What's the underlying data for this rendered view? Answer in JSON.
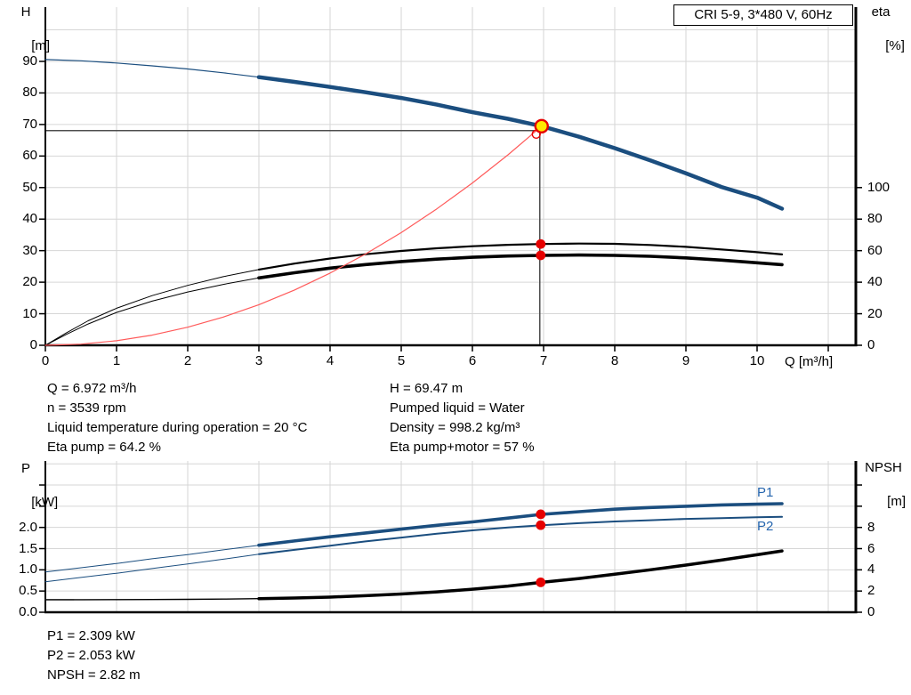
{
  "colors": {
    "curve_blue": "#1b4e7f",
    "legend_blue": "#2565ae",
    "red": "#e60000",
    "system_red": "#ff5a5a",
    "duty_yellow": "#ffe800",
    "grid": "#d6d6d6",
    "axis": "#000000",
    "crosshair": "#4d4d4d",
    "black": "#000000",
    "gray_lead": "#9a9a9a"
  },
  "info": {
    "left": [
      "Q = 6.972 m³/h",
      "n = 3539 rpm",
      "Liquid temperature during operation = 20 °C",
      "Eta pump = 64.2 %"
    ],
    "right": [
      "H = 69.47 m",
      "Pumped liquid = Water",
      "Density = 998.2 kg/m³",
      "Eta pump+motor = 57 %"
    ]
  },
  "results": [
    "P1 = 2.309 kW",
    "P2 = 2.053 kW",
    "NPSH = 2.82 m"
  ],
  "chart_data": [
    {
      "type": "line",
      "title": "CRI 5-9, 3*480 V, 60Hz",
      "xlabel": "Q [m³/h]",
      "ylabel_left": [
        "H",
        "[m]"
      ],
      "ylabel_right": [
        "eta",
        "[%]"
      ],
      "xlim": [
        0,
        11.4
      ],
      "ylim_left": [
        0,
        107
      ],
      "right_axis_note": "eta value = 2 x H-axis position",
      "x_tick_labels": [
        0,
        1,
        2,
        3,
        4,
        5,
        6,
        7,
        8,
        9,
        10
      ],
      "x_grid_count": 11,
      "left_tick_labels": [
        0,
        10,
        20,
        30,
        40,
        50,
        60,
        70,
        80,
        90
      ],
      "left_grid_values": [
        10,
        20,
        30,
        40,
        50,
        60,
        70,
        80,
        90,
        100
      ],
      "right_tick_labels": [
        0,
        20,
        40,
        60,
        80,
        100
      ],
      "duty_point": {
        "q": 6.972,
        "h": 69.47
      },
      "series": [
        {
          "name": "head-curve",
          "axis": "H",
          "color_key": "curve_blue",
          "split_q": 3,
          "thin": 1.2,
          "thick": 4.5,
          "points": [
            [
              0,
              90.6
            ],
            [
              0.5,
              90.2
            ],
            [
              1,
              89.5
            ],
            [
              1.5,
              88.6
            ],
            [
              2,
              87.6
            ],
            [
              2.5,
              86.4
            ],
            [
              3,
              85.0
            ],
            [
              3.5,
              83.5
            ],
            [
              4,
              81.9
            ],
            [
              4.5,
              80.2
            ],
            [
              5,
              78.4
            ],
            [
              5.5,
              76.3
            ],
            [
              6,
              73.9
            ],
            [
              6.5,
              71.8
            ],
            [
              6.972,
              69.47
            ],
            [
              7.5,
              66.1
            ],
            [
              8,
              62.5
            ],
            [
              8.5,
              58.6
            ],
            [
              9,
              54.5
            ],
            [
              9.5,
              50.2
            ],
            [
              10,
              46.8
            ],
            [
              10.35,
              43.3
            ]
          ]
        },
        {
          "name": "eta-pump-curve",
          "axis": "eta",
          "color_key": "black",
          "split_q": 3,
          "thin": 1.0,
          "thick": 2.2,
          "points": [
            [
              0,
              0
            ],
            [
              0.3,
              8
            ],
            [
              0.6,
              15.5
            ],
            [
              1,
              23.5
            ],
            [
              1.5,
              31.5
            ],
            [
              2,
              38
            ],
            [
              2.5,
              43.5
            ],
            [
              3,
              48
            ],
            [
              3.5,
              51.8
            ],
            [
              4,
              55
            ],
            [
              4.5,
              57.7
            ],
            [
              5,
              59.8
            ],
            [
              5.5,
              61.5
            ],
            [
              6,
              62.8
            ],
            [
              6.5,
              63.7
            ],
            [
              6.972,
              64.2
            ],
            [
              7.5,
              64.5
            ],
            [
              8,
              64.3
            ],
            [
              8.5,
              63.6
            ],
            [
              9,
              62.4
            ],
            [
              9.5,
              60.8
            ],
            [
              10,
              59.0
            ],
            [
              10.35,
              57.6
            ]
          ]
        },
        {
          "name": "eta-pump-motor-curve",
          "axis": "eta",
          "color_key": "black",
          "split_q": 3,
          "thin": 1.0,
          "thick": 3.6,
          "points": [
            [
              0,
              0
            ],
            [
              0.3,
              7
            ],
            [
              0.6,
              13.5
            ],
            [
              1,
              20.8
            ],
            [
              1.5,
              28
            ],
            [
              2,
              33.8
            ],
            [
              2.5,
              38.6
            ],
            [
              3,
              42.7
            ],
            [
              3.5,
              46
            ],
            [
              4,
              48.9
            ],
            [
              4.5,
              51.2
            ],
            [
              5,
              53.1
            ],
            [
              5.5,
              54.6
            ],
            [
              6,
              55.8
            ],
            [
              6.5,
              56.6
            ],
            [
              6.972,
              57.0
            ],
            [
              7.5,
              57.2
            ],
            [
              8,
              57.0
            ],
            [
              8.5,
              56.4
            ],
            [
              9,
              55.4
            ],
            [
              9.5,
              54.0
            ],
            [
              10,
              52.3
            ],
            [
              10.35,
              51.1
            ]
          ]
        },
        {
          "name": "system-curve",
          "axis": "H",
          "color_key": "system_red",
          "thin": 1.2,
          "points": [
            [
              0,
              0
            ],
            [
              0.5,
              0.36
            ],
            [
              1,
              1.43
            ],
            [
              1.5,
              3.22
            ],
            [
              2,
              5.72
            ],
            [
              2.5,
              8.93
            ],
            [
              3,
              12.86
            ],
            [
              3.5,
              17.51
            ],
            [
              4,
              22.87
            ],
            [
              4.5,
              28.94
            ],
            [
              5,
              35.73
            ],
            [
              5.5,
              43.24
            ],
            [
              6,
              51.45
            ],
            [
              6.5,
              60.39
            ],
            [
              6.972,
              69.47
            ]
          ]
        }
      ],
      "markers": [
        {
          "name": "duty-point-marker",
          "q": 6.972,
          "axis": "H",
          "value": 69.47,
          "style": "yellow-red-ring"
        },
        {
          "name": "eta-pump-point",
          "q": 6.972,
          "axis": "eta",
          "value": 64.2,
          "style": "red-dot"
        },
        {
          "name": "eta-pump-motor-point",
          "q": 6.972,
          "axis": "eta",
          "value": 57,
          "style": "red-dot"
        }
      ]
    },
    {
      "type": "line",
      "title": "",
      "xlabel": "",
      "ylabel_left": [
        "P",
        "[kW]"
      ],
      "ylabel_right": [
        "NPSH",
        "[m]"
      ],
      "legend": [
        "P1",
        "P2"
      ],
      "xlim": [
        0,
        11.4
      ],
      "ylim_left": [
        0,
        3.57
      ],
      "ylim_right": [
        0,
        14.3
      ],
      "x_grid_count": 11,
      "left_tick_labels": [
        "0.0",
        "0.5",
        "1.0",
        "1.5",
        "2.0"
      ],
      "left_tick_marks": [
        0,
        0.5,
        1,
        1.5,
        2,
        2.5,
        3
      ],
      "left_grid_values": [
        0.5,
        1,
        1.5,
        2,
        2.5,
        3,
        3.5
      ],
      "right_tick_labels": [
        0,
        2,
        4,
        6,
        8
      ],
      "right_tick_marks": [
        0,
        2,
        4,
        6,
        8,
        10,
        12
      ],
      "series": [
        {
          "name": "p1-curve",
          "axis": "P",
          "color_key": "curve_blue",
          "split_q": 3,
          "thin": 1.0,
          "thick": 3.6,
          "points": [
            [
              0,
              0.95
            ],
            [
              0.5,
              1.05
            ],
            [
              1,
              1.15
            ],
            [
              1.5,
              1.26
            ],
            [
              2,
              1.36
            ],
            [
              2.5,
              1.47
            ],
            [
              3,
              1.58
            ],
            [
              3.5,
              1.68
            ],
            [
              4,
              1.78
            ],
            [
              4.5,
              1.87
            ],
            [
              5,
              1.96
            ],
            [
              5.5,
              2.05
            ],
            [
              6,
              2.13
            ],
            [
              6.5,
              2.22
            ],
            [
              6.972,
              2.309
            ],
            [
              7.5,
              2.37
            ],
            [
              8,
              2.43
            ],
            [
              8.5,
              2.47
            ],
            [
              9,
              2.5
            ],
            [
              9.5,
              2.53
            ],
            [
              10,
              2.55
            ],
            [
              10.35,
              2.56
            ]
          ]
        },
        {
          "name": "p2-curve",
          "axis": "P",
          "color_key": "curve_blue",
          "split_q": 3,
          "thin": 1.0,
          "thick": 2.0,
          "points": [
            [
              0,
              0.72
            ],
            [
              0.5,
              0.82
            ],
            [
              1,
              0.92
            ],
            [
              1.5,
              1.03
            ],
            [
              2,
              1.14
            ],
            [
              2.5,
              1.25
            ],
            [
              3,
              1.37
            ],
            [
              3.5,
              1.47
            ],
            [
              4,
              1.57
            ],
            [
              4.5,
              1.67
            ],
            [
              5,
              1.76
            ],
            [
              5.5,
              1.85
            ],
            [
              6,
              1.93
            ],
            [
              6.5,
              2.0
            ],
            [
              6.972,
              2.053
            ],
            [
              7.5,
              2.1
            ],
            [
              8,
              2.14
            ],
            [
              8.5,
              2.17
            ],
            [
              9,
              2.2
            ],
            [
              9.5,
              2.22
            ],
            [
              10,
              2.24
            ],
            [
              10.35,
              2.25
            ]
          ]
        },
        {
          "name": "npsh-curve",
          "axis": "NPSH",
          "color_key": "black",
          "split_q": 3,
          "thin": 1.4,
          "thick": 3.5,
          "gray_lead_q": 0.4,
          "points": [
            [
              0,
              1.18
            ],
            [
              0.5,
              1.18
            ],
            [
              1,
              1.19
            ],
            [
              1.5,
              1.2
            ],
            [
              2,
              1.22
            ],
            [
              2.5,
              1.24
            ],
            [
              3,
              1.28
            ],
            [
              3.5,
              1.34
            ],
            [
              4,
              1.43
            ],
            [
              4.5,
              1.56
            ],
            [
              5,
              1.72
            ],
            [
              5.5,
              1.92
            ],
            [
              6,
              2.17
            ],
            [
              6.5,
              2.47
            ],
            [
              6.972,
              2.82
            ],
            [
              7.5,
              3.18
            ],
            [
              8,
              3.58
            ],
            [
              8.5,
              4.0
            ],
            [
              9,
              4.45
            ],
            [
              9.5,
              4.92
            ],
            [
              10,
              5.42
            ],
            [
              10.35,
              5.78
            ]
          ]
        }
      ],
      "markers": [
        {
          "name": "p1-point",
          "q": 6.972,
          "axis": "P",
          "value": 2.309,
          "style": "red-dot"
        },
        {
          "name": "p2-point",
          "q": 6.972,
          "axis": "P",
          "value": 2.053,
          "style": "red-dot"
        },
        {
          "name": "npsh-point",
          "q": 6.972,
          "axis": "NPSH",
          "value": 2.82,
          "style": "red-dot"
        }
      ]
    }
  ]
}
